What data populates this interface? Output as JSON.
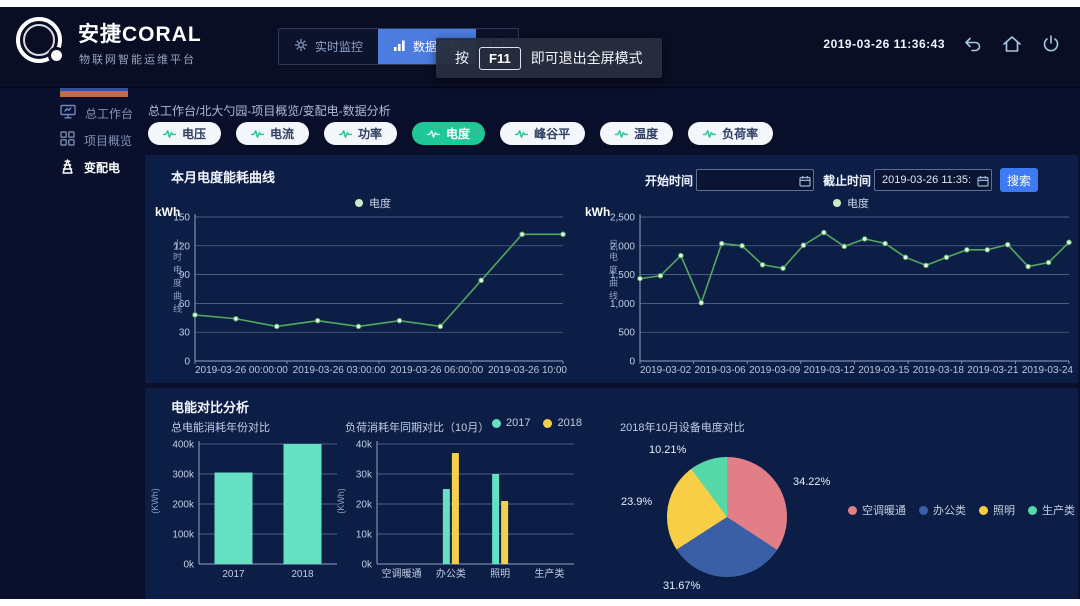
{
  "header": {
    "logo_title": "安捷CORAL",
    "logo_subtitle": "物联网智能运维平台",
    "nav": [
      {
        "label": "实时监控"
      },
      {
        "label": "数据分析"
      },
      {
        "label": ""
      }
    ],
    "tooltip": {
      "prefix": "按",
      "key": "F11",
      "suffix": "即可退出全屏模式"
    },
    "datetime": "2019-03-26 11:36:43"
  },
  "sidebar": {
    "items": [
      {
        "label": "总工作台"
      },
      {
        "label": "项目概览"
      },
      {
        "label": "变配电"
      }
    ]
  },
  "breadcrumb": "总工作台/北大勺园-项目概览/变配电-数据分析",
  "tabs": [
    {
      "label": "电压"
    },
    {
      "label": "电流"
    },
    {
      "label": "功率"
    },
    {
      "label": "电度",
      "active": true
    },
    {
      "label": "峰谷平"
    },
    {
      "label": "温度"
    },
    {
      "label": "负荷率"
    }
  ],
  "filter": {
    "start_label": "开始时间",
    "start_value": "",
    "end_label": "截止时间",
    "end_value": "2019-03-26 11:35:47",
    "search_label": "搜索"
  },
  "bottom": {
    "section_title": "电能对比分析"
  },
  "chart_data": [
    {
      "id": "hourly_energy",
      "type": "line",
      "title": "本月电度能耗曲线",
      "unit": "kWh",
      "y_axis_label": "小时电度曲线",
      "series": [
        {
          "name": "电度",
          "color": "#52a85f",
          "values": [
            48,
            44,
            36,
            42,
            36,
            42,
            36,
            84,
            132,
            132
          ]
        }
      ],
      "x_tick_labels": [
        "2019-03-26 00:00:00",
        "2019-03-26 03:00:00",
        "2019-03-26 06:00:00",
        "2019-03-26 10:00"
      ],
      "ylim": [
        0,
        150
      ],
      "yticks": [
        0,
        30,
        60,
        90,
        120,
        150
      ],
      "ytick_labels": [
        "0",
        "30",
        "60",
        "90",
        "120",
        "150"
      ],
      "grid": true,
      "legend_position": "top"
    },
    {
      "id": "daily_energy",
      "type": "line",
      "unit": "kWh",
      "y_axis_label": "日电度曲线",
      "series": [
        {
          "name": "电度",
          "color": "#52a85f",
          "values": [
            1430,
            1480,
            1830,
            1010,
            2040,
            2000,
            1670,
            1610,
            2010,
            2230,
            1990,
            2120,
            2040,
            1800,
            1660,
            1800,
            1930,
            1930,
            2020,
            1640,
            1710,
            2060
          ]
        }
      ],
      "x_tick_labels": [
        "2019-03-02",
        "2019-03-06",
        "2019-03-09",
        "2019-03-12",
        "2019-03-15",
        "2019-03-18",
        "2019-03-21",
        "2019-03-24"
      ],
      "ylim": [
        0,
        2500
      ],
      "yticks": [
        0,
        500,
        1000,
        1500,
        2000,
        2500
      ],
      "ytick_labels": [
        "0",
        "500",
        "1,000",
        "1,500",
        "2,000",
        "2,500"
      ],
      "grid": true,
      "legend_position": "top"
    },
    {
      "id": "yearly_energy",
      "type": "bar",
      "title": "总电能消耗年份对比",
      "ylabel": "(KWh)",
      "categories": [
        "2017",
        "2018"
      ],
      "series": [
        {
          "name": "电度",
          "color": "#66e0c2",
          "values": [
            305000,
            400000
          ]
        }
      ],
      "ylim": [
        0,
        400000
      ],
      "yticks": [
        0,
        100000,
        200000,
        300000,
        400000
      ],
      "ytick_labels": [
        "0k",
        "100k",
        "200k",
        "300k",
        "400k"
      ],
      "grid": true
    },
    {
      "id": "load_compare",
      "type": "bar",
      "title": "负荷消耗年同期对比（10月）",
      "ylabel": "(KWh)",
      "categories": [
        "空调暖通",
        "办公类",
        "照明",
        "生产类"
      ],
      "series": [
        {
          "name": "2017",
          "color": "#66e0c2",
          "values": [
            0,
            25000,
            30000,
            0
          ]
        },
        {
          "name": "2018",
          "color": "#f5cf4b",
          "values": [
            0,
            37000,
            21000,
            0
          ]
        }
      ],
      "ylim": [
        0,
        40000
      ],
      "yticks": [
        0,
        10000,
        20000,
        30000,
        40000
      ],
      "ytick_labels": [
        "0k",
        "10k",
        "20k",
        "30k",
        "40k"
      ],
      "grid": true,
      "legend_position": "top-right"
    },
    {
      "id": "device_pie",
      "type": "pie",
      "title": "2018年10月设备电度对比",
      "slices": [
        {
          "label": "空调暖通",
          "value": 34.22,
          "pct_text": "34.22%",
          "color": "#e27e87"
        },
        {
          "label": "办公类",
          "value": 31.67,
          "pct_text": "31.67%",
          "color": "#3b5fa7"
        },
        {
          "label": "照明",
          "value": 23.9,
          "pct_text": "23.9%",
          "color": "#f7ce45"
        },
        {
          "label": "生产类",
          "value": 10.21,
          "pct_text": "10.21%",
          "color": "#57d8a8"
        }
      ],
      "legend_position": "right"
    }
  ]
}
